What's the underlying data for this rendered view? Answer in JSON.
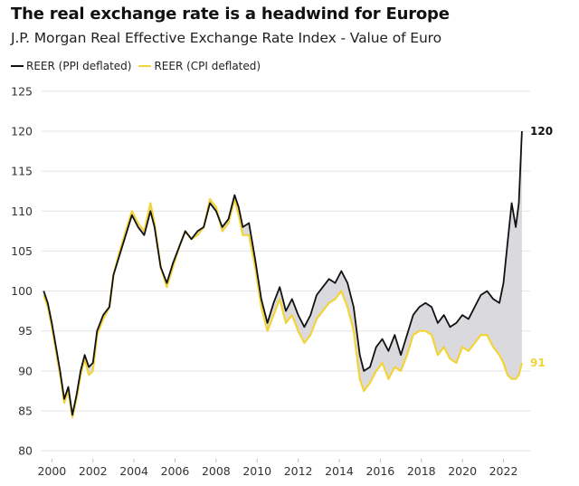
{
  "header": {
    "title": "The real exchange rate is a headwind for Europe",
    "subtitle": "J.P. Morgan Real Effective Exchange Rate Index - Value of Euro"
  },
  "legend": [
    {
      "label": "REER (PPI deflated)",
      "color": "#111111"
    },
    {
      "label": "REER (CPI deflated)",
      "color": "#f2d43a"
    }
  ],
  "colors": {
    "ppi": "#111111",
    "cpi": "#f2d43a",
    "fill": "#d6d6da",
    "grid": "#e4e4e4"
  },
  "chart_data": {
    "type": "line",
    "title": "The real exchange rate is a headwind for Europe",
    "subtitle": "J.P. Morgan Real Effective Exchange Rate Index - Value of Euro",
    "xlabel": "",
    "ylabel": "",
    "xlim": [
      1999.5,
      2023.3
    ],
    "ylim": [
      79,
      126
    ],
    "y_ticks": [
      80,
      85,
      90,
      95,
      100,
      105,
      110,
      115,
      120,
      125
    ],
    "x_ticks": [
      2000,
      2002,
      2004,
      2006,
      2008,
      2010,
      2012,
      2014,
      2016,
      2018,
      2020,
      2022
    ],
    "grid": "horizontal",
    "legend_position": "top-left",
    "shading": "area between series filled grey where PPI > CPI",
    "end_labels": [
      {
        "series": "REER (PPI deflated)",
        "text": "120"
      },
      {
        "series": "REER (CPI deflated)",
        "text": "91"
      }
    ],
    "series": [
      {
        "name": "REER (PPI deflated)",
        "x": [
          1999.6,
          1999.8,
          2000.0,
          2000.2,
          2000.4,
          2000.6,
          2000.8,
          2001.0,
          2001.2,
          2001.4,
          2001.6,
          2001.8,
          2002.0,
          2002.2,
          2002.5,
          2002.8,
          2003.0,
          2003.3,
          2003.6,
          2003.9,
          2004.2,
          2004.5,
          2004.8,
          2005.0,
          2005.3,
          2005.6,
          2005.9,
          2006.2,
          2006.5,
          2006.8,
          2007.1,
          2007.4,
          2007.7,
          2008.0,
          2008.3,
          2008.6,
          2008.9,
          2009.1,
          2009.3,
          2009.6,
          2009.9,
          2010.2,
          2010.5,
          2010.8,
          2011.1,
          2011.4,
          2011.7,
          2012.0,
          2012.3,
          2012.6,
          2012.9,
          2013.2,
          2013.5,
          2013.8,
          2014.1,
          2014.4,
          2014.7,
          2015.0,
          2015.2,
          2015.5,
          2015.8,
          2016.1,
          2016.4,
          2016.7,
          2017.0,
          2017.3,
          2017.6,
          2017.9,
          2018.2,
          2018.5,
          2018.8,
          2019.1,
          2019.4,
          2019.7,
          2020.0,
          2020.3,
          2020.6,
          2020.9,
          2021.2,
          2021.5,
          2021.8,
          2022.0,
          2022.2,
          2022.4,
          2022.6,
          2022.75,
          2022.9
        ],
        "values": [
          100,
          98.5,
          96,
          93,
          90,
          86.5,
          88,
          84.5,
          87,
          90,
          92,
          90.5,
          91,
          95,
          97,
          98,
          102,
          104.5,
          107,
          109.5,
          108,
          107,
          110,
          108,
          103,
          101,
          103.5,
          105.5,
          107.5,
          106.5,
          107.5,
          108,
          111,
          110,
          108,
          109,
          112,
          110.5,
          108,
          108.5,
          104,
          99,
          96,
          98.5,
          100.5,
          97.5,
          99,
          97,
          95.5,
          97,
          99.5,
          100.5,
          101.5,
          101,
          102.5,
          101,
          98,
          92,
          90,
          90.5,
          93,
          94,
          92.5,
          94.5,
          92,
          94.5,
          97,
          98,
          98.5,
          98,
          96,
          97,
          95.5,
          96,
          97,
          96.5,
          98,
          99.5,
          100,
          99,
          98.5,
          101,
          106,
          111,
          108,
          111,
          120
        ]
      },
      {
        "name": "REER (CPI deflated)",
        "x": [
          1999.6,
          1999.8,
          2000.0,
          2000.2,
          2000.4,
          2000.6,
          2000.8,
          2001.0,
          2001.2,
          2001.4,
          2001.6,
          2001.8,
          2002.0,
          2002.2,
          2002.5,
          2002.8,
          2003.0,
          2003.3,
          2003.6,
          2003.9,
          2004.2,
          2004.5,
          2004.8,
          2005.0,
          2005.3,
          2005.6,
          2005.9,
          2006.2,
          2006.5,
          2006.8,
          2007.1,
          2007.4,
          2007.7,
          2008.0,
          2008.3,
          2008.6,
          2008.9,
          2009.1,
          2009.3,
          2009.6,
          2009.9,
          2010.2,
          2010.5,
          2010.8,
          2011.1,
          2011.4,
          2011.7,
          2012.0,
          2012.3,
          2012.6,
          2012.9,
          2013.2,
          2013.5,
          2013.8,
          2014.1,
          2014.4,
          2014.7,
          2015.0,
          2015.2,
          2015.5,
          2015.8,
          2016.1,
          2016.4,
          2016.7,
          2017.0,
          2017.3,
          2017.6,
          2017.9,
          2018.2,
          2018.5,
          2018.8,
          2019.1,
          2019.4,
          2019.7,
          2020.0,
          2020.3,
          2020.6,
          2020.9,
          2021.2,
          2021.5,
          2021.8,
          2022.0,
          2022.2,
          2022.4,
          2022.6,
          2022.75,
          2022.9
        ],
        "values": [
          99.5,
          98,
          95.5,
          92.5,
          89.5,
          86,
          87.5,
          84.2,
          86.5,
          89.5,
          91.5,
          89.5,
          90,
          94.5,
          96.5,
          98,
          102,
          105,
          107.5,
          110,
          108.5,
          107.5,
          111,
          108.5,
          103,
          100.5,
          103,
          105.5,
          107.5,
          106.5,
          107,
          108,
          111.5,
          110.5,
          107.5,
          108.5,
          111.5,
          109.5,
          107,
          107,
          103,
          98,
          95,
          97,
          99,
          96,
          97,
          95,
          93.5,
          94.5,
          96.5,
          97.5,
          98.5,
          99,
          100,
          98,
          95,
          89,
          87.5,
          88.5,
          90,
          91,
          89,
          90.5,
          90,
          92,
          94.5,
          95,
          95,
          94.5,
          92,
          93,
          91.5,
          91,
          93,
          92.5,
          93.5,
          94.5,
          94.5,
          93,
          92,
          91,
          89.5,
          89,
          89,
          89.5,
          91
        ]
      }
    ]
  }
}
